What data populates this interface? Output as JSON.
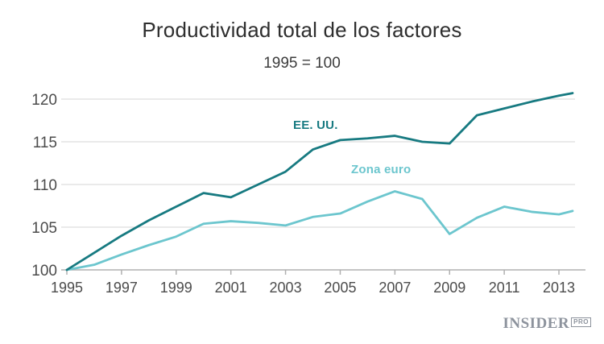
{
  "header": {
    "title": "Productividad total de los factores",
    "subtitle": "1995 = 100"
  },
  "branding": {
    "name": "INSIDER",
    "suffix": "PRO"
  },
  "colors": {
    "us_line": "#177a81",
    "eurozone_line": "#6cc6ce",
    "gridline": "#e4e4e4",
    "axis": "#b0b0b0",
    "tick_label": "#4c4c4c",
    "title_text": "#2e2e2e",
    "logo_gray": "#8d939d"
  },
  "chart_data": {
    "type": "line",
    "title": "Productividad total de los factores",
    "subtitle": "1995 = 100",
    "x": [
      1995,
      1996,
      1997,
      1998,
      1999,
      2000,
      2001,
      2002,
      2003,
      2004,
      2005,
      2006,
      2007,
      2008,
      2009,
      2010,
      2011,
      2012,
      2013,
      2013.5
    ],
    "series": [
      {
        "name": "EE. UU.",
        "color": "#177a81",
        "values": [
          100,
          102.0,
          104.0,
          105.8,
          107.4,
          109.0,
          108.5,
          110.0,
          111.5,
          114.1,
          115.2,
          115.4,
          115.7,
          115.0,
          114.8,
          118.1,
          118.9,
          119.7,
          120.4,
          120.7
        ]
      },
      {
        "name": "Zona euro",
        "color": "#6cc6ce",
        "values": [
          100,
          100.6,
          101.8,
          102.9,
          103.9,
          105.4,
          105.7,
          105.5,
          105.2,
          106.2,
          106.6,
          108.0,
          109.2,
          108.3,
          104.2,
          106.1,
          107.4,
          106.8,
          106.5,
          106.9
        ]
      }
    ],
    "x_ticks": [
      1995,
      1997,
      1999,
      2001,
      2003,
      2005,
      2007,
      2009,
      2011,
      2013
    ],
    "y_ticks": [
      100,
      105,
      110,
      115,
      120
    ],
    "xlim": [
      1995,
      2013.5
    ],
    "ylim": [
      100,
      121
    ],
    "grid": "horizontal",
    "legend_position": "inline-labels"
  }
}
